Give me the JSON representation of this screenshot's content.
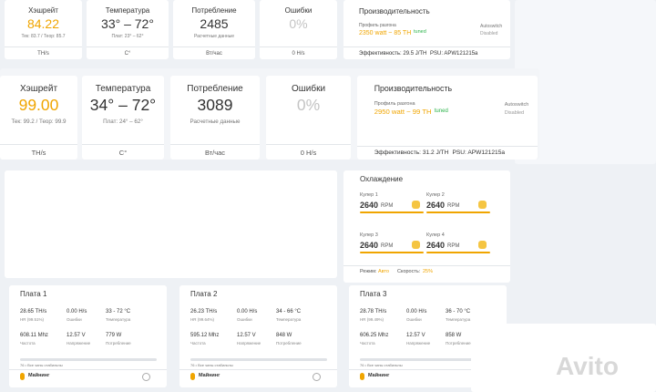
{
  "top_cards": [
    {
      "title": "Хэшрейт",
      "value": "84.22",
      "sub": "Тек: 83.7 / Теор: 85.7",
      "unit": "TH/s"
    },
    {
      "title": "Температура",
      "value": "33° – 72°",
      "sub": "Плат: 23° – 62°",
      "unit": "C°"
    },
    {
      "title": "Потребление",
      "value": "2485",
      "sub": "Расчетные данные",
      "unit": "Вт/час"
    },
    {
      "title": "Ошибки",
      "value": "0%",
      "unit": "0 H/s"
    }
  ],
  "top_perf": {
    "title": "Производительность",
    "profile_label": "Профиль разгона",
    "profile": "2350 watt ~ 85 TH",
    "tuned": "tuned",
    "autoswitch": "Autoswitch",
    "disabled": "Disabled",
    "efficiency": "Эффективность: 29.5 J/TH",
    "psu": "PSU: APW121215a"
  },
  "zoom_cards": [
    {
      "title": "Хэшрейт",
      "value": "99.00",
      "sub": "Тек: 99.2 / Теор: 99.9",
      "unit": "TH/s"
    },
    {
      "title": "Температура",
      "value": "34° – 72°",
      "sub": "Плат: 24° – 62°",
      "unit": "C°"
    },
    {
      "title": "Потребление",
      "value": "3089",
      "sub": "Расчетные данные",
      "unit": "Вт/час"
    },
    {
      "title": "Ошибки",
      "value": "0%",
      "unit": "0 H/s"
    }
  ],
  "zoom_perf": {
    "title": "Производительность",
    "profile_label": "Профиль разгона",
    "profile": "2950 watt ~ 99 TH",
    "tuned": "tuned",
    "autoswitch": "Autoswitch",
    "disabled": "Disabled",
    "efficiency": "Эффективность: 31.2 J/TH",
    "psu": "PSU: APW121215a"
  },
  "cooling": {
    "title": "Охлаждение",
    "fans": [
      {
        "name": "Кулер 1",
        "value": "2640",
        "unit": "RPM"
      },
      {
        "name": "Кулер 2",
        "value": "2640",
        "unit": "RPM"
      },
      {
        "name": "Кулер 3",
        "value": "2640",
        "unit": "RPM"
      },
      {
        "name": "Кулер 4",
        "value": "2640",
        "unit": "RPM"
      }
    ],
    "mode_label": "Режим:",
    "mode": "Авто",
    "speed_label": "Скорость:",
    "speed": "25%"
  },
  "boards": [
    {
      "title": "Плата 1",
      "stats": [
        [
          "28.65 TH/s",
          "HR (99.51%)"
        ],
        [
          "0.00 H/s",
          "Ошибки"
        ],
        [
          "33 - 72 °C",
          "Температура"
        ],
        [
          "608.11 Mhz",
          "Частота"
        ],
        [
          "12.57 V",
          "Напряжение"
        ],
        [
          "779 W",
          "Потребление"
        ]
      ],
      "chips": "76 • Все чипы стабильны",
      "status": "Майнинг"
    },
    {
      "title": "Плата 2",
      "stats": [
        [
          "26.23 TH/s",
          "HR (99.64%)"
        ],
        [
          "0.00 H/s",
          "Ошибки"
        ],
        [
          "34 - 66 °C",
          "Температура"
        ],
        [
          "595.12 Mhz",
          "Частота"
        ],
        [
          "12.57 V",
          "Напряжение"
        ],
        [
          "848 W",
          "Потребление"
        ]
      ],
      "chips": "76 • Все чипы стабильны",
      "status": "Майнинг"
    },
    {
      "title": "Плата 3",
      "stats": [
        [
          "28.78 TH/s",
          "HR (99.49%)"
        ],
        [
          "0.00 H/s",
          "Ошибки"
        ],
        [
          "36 - 70 °C",
          "Температура"
        ],
        [
          "606.25 Mhz",
          "Частота"
        ],
        [
          "12.57 V",
          "Напряжение"
        ],
        [
          "858 W",
          "Потребление"
        ]
      ],
      "chips": "76 • Все чипы стабильны",
      "status": "Майнинг"
    }
  ],
  "watermark": "Avito"
}
